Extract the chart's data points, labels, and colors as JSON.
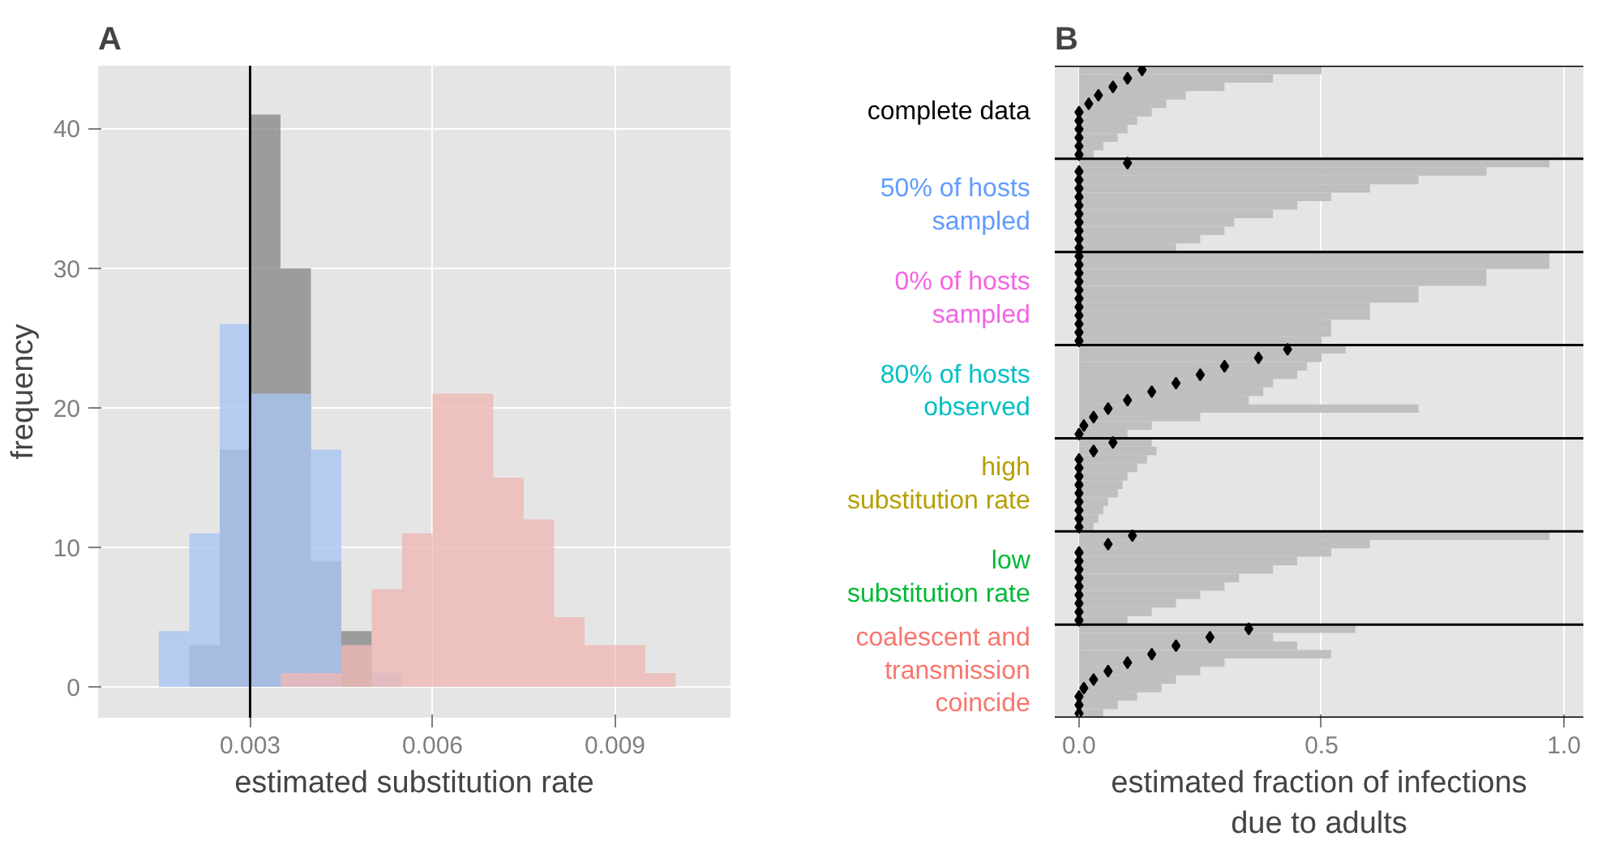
{
  "chart_data": [
    {
      "type": "histogram",
      "title": "A",
      "xlabel": "estimated substitution rate",
      "ylabel": "frequency",
      "bins": [
        0.0015,
        0.002,
        0.0025,
        0.003,
        0.0035,
        0.004,
        0.0045,
        0.005,
        0.0055,
        0.006,
        0.0065,
        0.007,
        0.0075,
        0.008,
        0.0085,
        0.009,
        0.0095,
        0.01
      ],
      "series": [
        {
          "color": "#8a8a8a",
          "values": [
            0,
            3,
            17,
            41,
            30,
            9,
            4,
            0,
            0,
            0,
            0,
            0,
            0,
            0,
            0,
            0,
            0
          ]
        },
        {
          "color": "#a9c4f2",
          "values": [
            4,
            11,
            26,
            21,
            21,
            17,
            0,
            1,
            0,
            0,
            0,
            0,
            0,
            0,
            0,
            0,
            0
          ]
        },
        {
          "color": "#eeb8b4",
          "values": [
            0,
            0,
            0,
            0,
            1,
            1,
            3,
            7,
            11,
            21,
            21,
            15,
            12,
            5,
            3,
            3,
            1
          ]
        }
      ],
      "xlim": [
        0.0005,
        0.0109
      ],
      "ylim": [
        -2.2,
        44.5
      ],
      "xticks": [
        0.003,
        0.006,
        0.009
      ],
      "yticks": [
        0,
        10,
        20,
        30,
        40
      ],
      "ref_lines": [
        {
          "axis": "x",
          "value": 0.003,
          "color": "#000000"
        }
      ],
      "grid": true
    },
    {
      "type": "bar",
      "orientation": "horizontal",
      "title": "B",
      "xlabel": "estimated fraction of infections\ndue to adults",
      "categories": [
        null,
        null,
        null,
        null,
        null,
        "complete data",
        null,
        null,
        null,
        null,
        null,
        null,
        null,
        null,
        null,
        null,
        "50% of hosts\nsampled",
        null,
        null,
        null,
        null,
        null,
        null,
        null,
        null,
        null,
        null,
        "0% of hosts\nsampled",
        null,
        null,
        null,
        null,
        null,
        null,
        null,
        null,
        null,
        null,
        "80% of hosts\nobserved",
        null,
        null,
        null,
        null,
        null,
        null,
        null,
        null,
        null,
        null,
        "high\nsubstitution rate",
        null,
        null,
        null,
        null,
        null,
        null,
        null,
        null,
        null,
        null,
        "low\nsubstitution rate",
        null,
        null,
        null,
        null,
        null,
        null,
        null,
        null,
        null,
        null,
        "coalescent and\ntransmission\ncoincide",
        null,
        null,
        null,
        null,
        null
      ],
      "series": [
        {
          "color": "#bfbfbf",
          "values": [
            0.5,
            0.4,
            0.3,
            0.22,
            0.18,
            0.15,
            0.12,
            0.1,
            0.08,
            0.05,
            0.03,
            0.97,
            0.84,
            0.7,
            0.6,
            0.52,
            0.45,
            0.4,
            0.32,
            0.3,
            0.25,
            0.2,
            0.97,
            0.97,
            0.84,
            0.84,
            0.7,
            0.7,
            0.6,
            0.6,
            0.52,
            0.52,
            0.5,
            0.55,
            0.5,
            0.47,
            0.45,
            0.4,
            0.38,
            0.35,
            0.7,
            0.25,
            0.15,
            0.1,
            0.15,
            0.16,
            0.14,
            0.12,
            0.1,
            0.09,
            0.08,
            0.06,
            0.05,
            0.04,
            0.03,
            0.97,
            0.6,
            0.52,
            0.45,
            0.4,
            0.33,
            0.3,
            0.25,
            0.2,
            0.15,
            0.1,
            0.57,
            0.4,
            0.45,
            0.52,
            0.3,
            0.25,
            0.2,
            0.17,
            0.12,
            0.08,
            0.05
          ]
        },
        {
          "type": "scatter",
          "color": "#000000",
          "marker": "diamond",
          "values": [
            0.13,
            0.1,
            0.07,
            0.04,
            0.02,
            0,
            0,
            0,
            0,
            0,
            0,
            0.1,
            0,
            0,
            0,
            0,
            0,
            0,
            0,
            0,
            0,
            0,
            0,
            0,
            0,
            0,
            0,
            0,
            0,
            0,
            0,
            0,
            0,
            0.43,
            0.37,
            0.3,
            0.25,
            0.2,
            0.15,
            0.1,
            0.06,
            0.03,
            0.01,
            0,
            0.07,
            0.03,
            0,
            0,
            0,
            0,
            0,
            0,
            0,
            0,
            0,
            0.11,
            0.06,
            0,
            0,
            0,
            0,
            0,
            0,
            0,
            0,
            0,
            0.35,
            0.27,
            0.2,
            0.15,
            0.1,
            0.06,
            0.03,
            0.01,
            0,
            0,
            0
          ]
        }
      ],
      "xlim": [
        -0.05,
        1.04
      ],
      "xticks": [
        {
          "value": 0,
          "label": "0.0"
        },
        {
          "value": 0.5,
          "label": "0.5"
        },
        {
          "value": 1,
          "label": "1.0"
        }
      ],
      "grid": true
    }
  ]
}
